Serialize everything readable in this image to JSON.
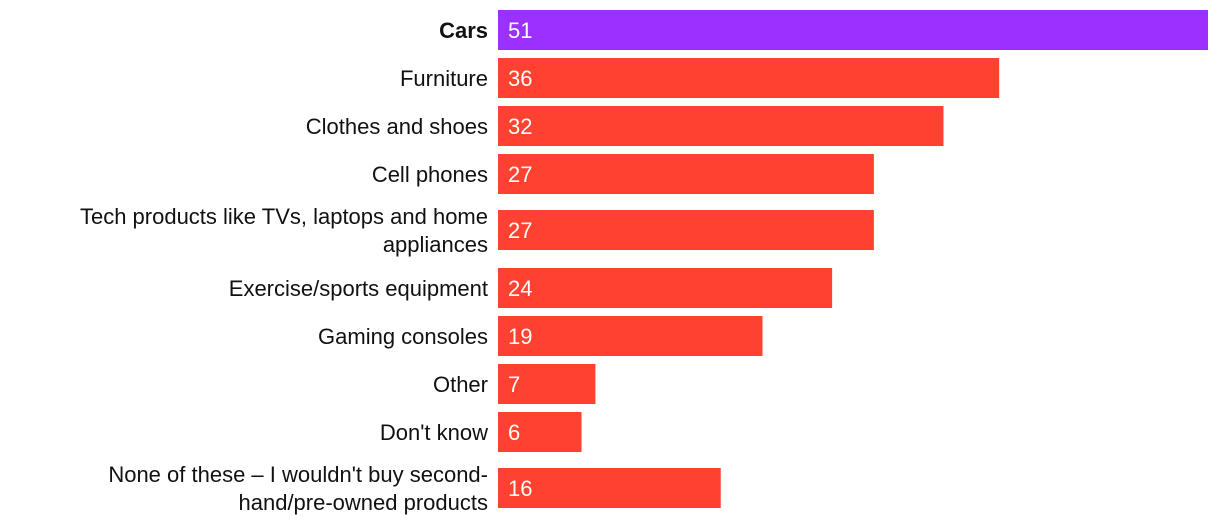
{
  "chart_data": {
    "type": "bar",
    "orientation": "horizontal",
    "title": "",
    "xlabel": "",
    "ylabel": "",
    "xlim": [
      0,
      51
    ],
    "grid": false,
    "categories": [
      "Cars",
      "Furniture",
      "Clothes and shoes",
      "Cell phones",
      "Tech products like TVs, laptops and home appliances",
      "Exercise/sports equipment",
      "Gaming consoles",
      "Other",
      "Don't know",
      "None of these – I wouldn't buy second-hand/pre-owned products"
    ],
    "label_lines": [
      [
        "Cars"
      ],
      [
        "Furniture"
      ],
      [
        "Clothes and shoes"
      ],
      [
        "Cell phones"
      ],
      [
        "Tech products like TVs, laptops and home",
        "appliances"
      ],
      [
        "Exercise/sports equipment"
      ],
      [
        "Gaming consoles"
      ],
      [
        "Other"
      ],
      [
        "Don't know"
      ],
      [
        "None of these – I wouldn't buy second-",
        "hand/pre-owned products"
      ]
    ],
    "values": [
      51,
      36,
      32,
      27,
      27,
      24,
      19,
      7,
      6,
      16
    ],
    "highlight_index": 0,
    "colors": {
      "highlight": "#9B30FF",
      "default": "#FF4130"
    }
  }
}
